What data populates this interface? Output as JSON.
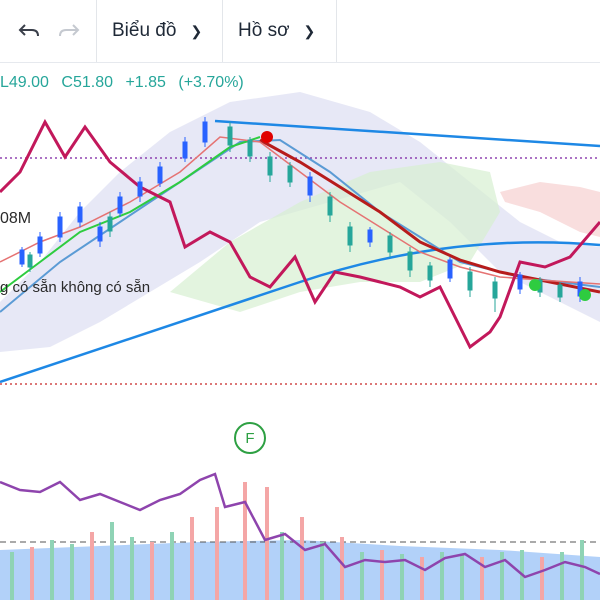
{
  "toolbar": {
    "undo_icon": "undo-icon",
    "redo_icon": "redo-icon",
    "chart_menu_label": "Biểu đồ",
    "profile_menu_label": "Hồ sơ"
  },
  "legend": {
    "low": "L49.00",
    "close": "C51.80",
    "change": "+1.85",
    "change_pct": "(+3.70%)",
    "color_up": "#26a69a"
  },
  "indicators": {
    "volume_label": "08M",
    "unavailable_label": "g có sẵn  không có sẵn"
  },
  "event_marker": {
    "label": "F"
  },
  "colors": {
    "candle_up": "#2962ff",
    "candle_down": "#26a69a",
    "ma_fast": "#e57373",
    "ma_mid": "#b71c1c",
    "ma_green": "#2ecc40",
    "ma_blue": "#5b9bd5",
    "trend_line": "#1e88e5",
    "oscillator": "#c2185b",
    "rsi_line": "#8e44ad",
    "cloud_fill": "#c9cdea"
  }
}
